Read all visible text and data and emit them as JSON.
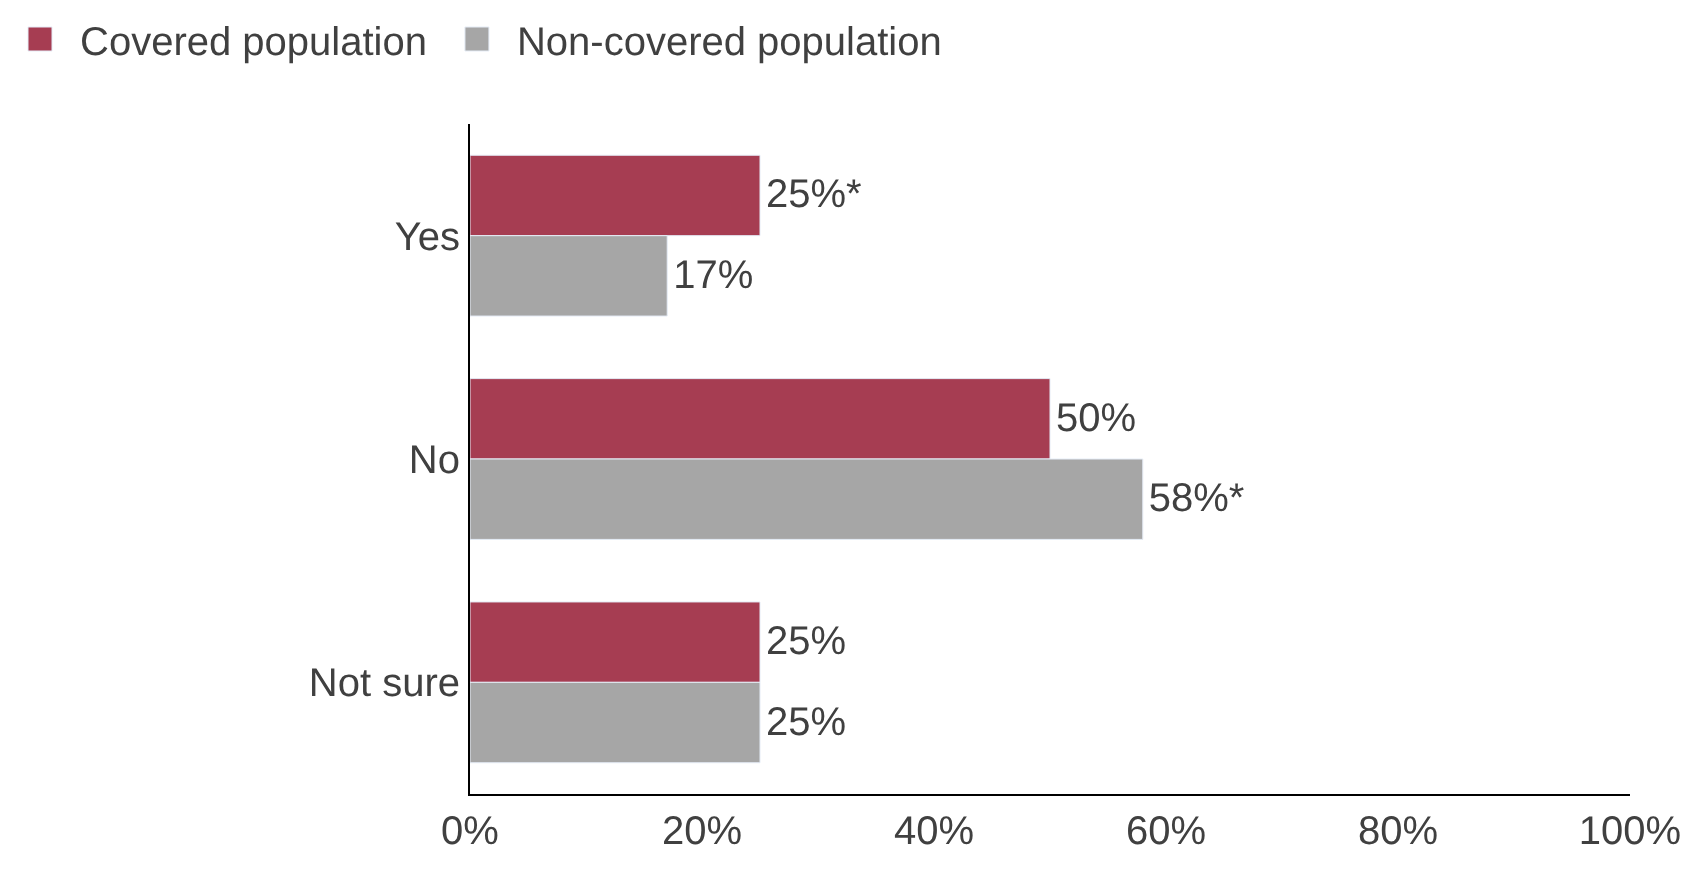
{
  "chart_data": {
    "type": "bar",
    "orientation": "horizontal",
    "categories": [
      "Yes",
      "No",
      "Not sure"
    ],
    "series": [
      {
        "name": "Covered population",
        "color": "#a63d52",
        "values": [
          25,
          50,
          25
        ],
        "value_labels": [
          "25%*",
          "50%",
          "25%"
        ]
      },
      {
        "name": "Non-covered population",
        "color": "#a6a6a6",
        "values": [
          17,
          58,
          25
        ],
        "value_labels": [
          "17%",
          "58%*",
          "25%"
        ]
      }
    ],
    "xlim": [
      0,
      100
    ],
    "xticks": [
      {
        "value": 0,
        "label": "0%"
      },
      {
        "value": 20,
        "label": "20%"
      },
      {
        "value": 40,
        "label": "40%"
      },
      {
        "value": 60,
        "label": "60%"
      },
      {
        "value": 80,
        "label": "80%"
      },
      {
        "value": 100,
        "label": "100%"
      }
    ],
    "legend": "top left"
  }
}
